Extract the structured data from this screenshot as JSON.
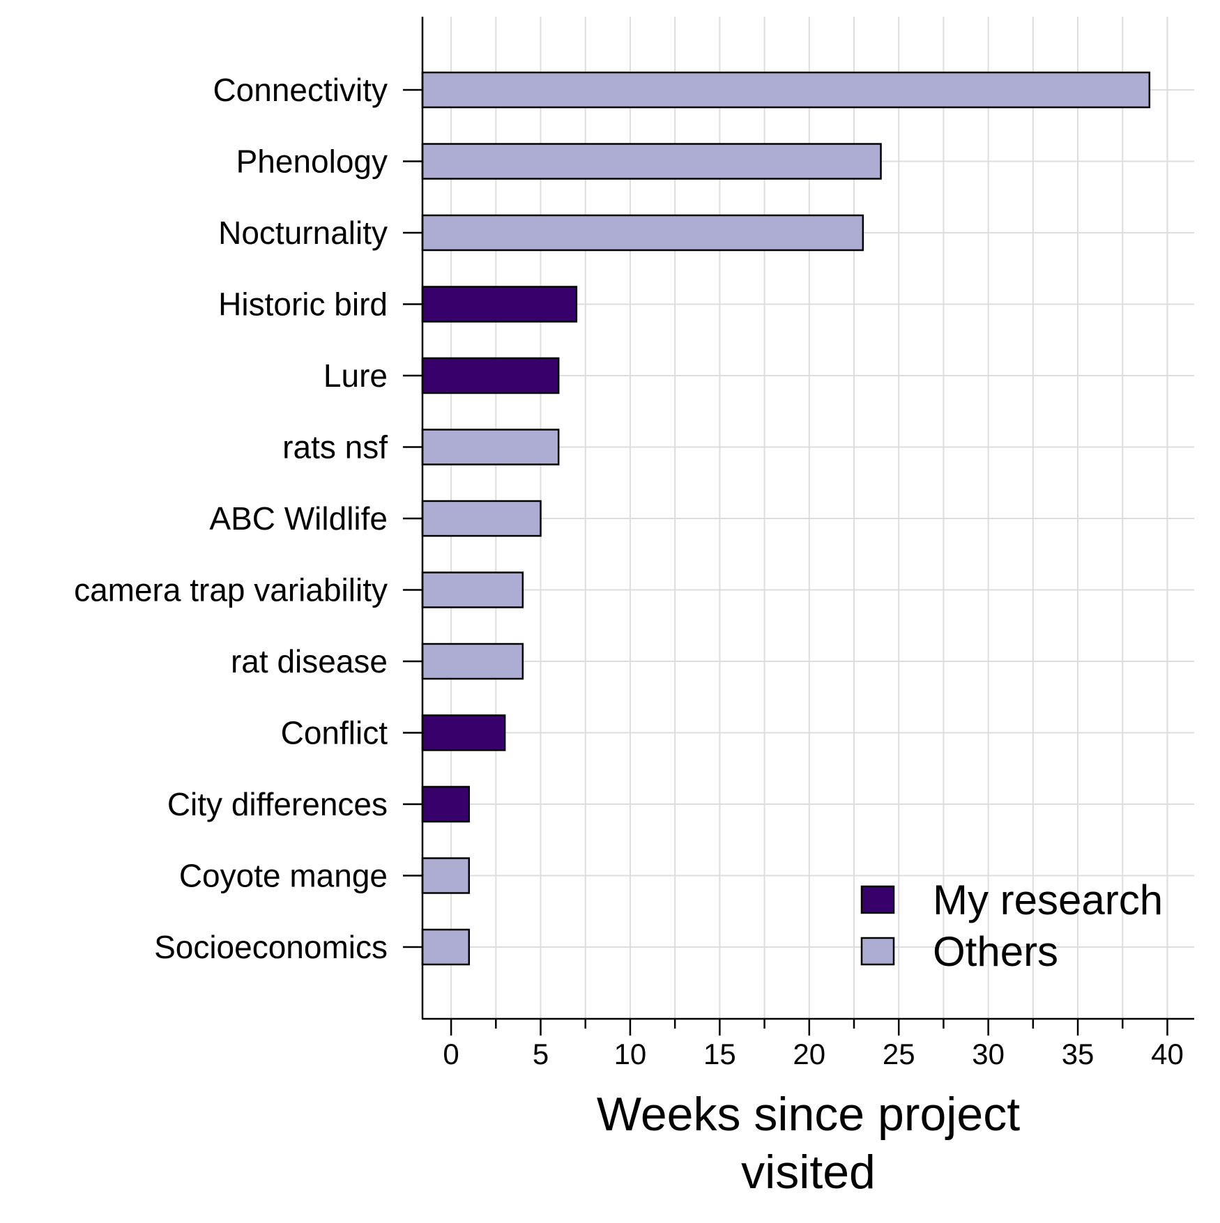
{
  "chart_data": {
    "type": "bar",
    "orientation": "horizontal",
    "categories": [
      "Connectivity",
      "Phenology",
      "Nocturnality",
      "Historic bird",
      "Lure",
      "rats nsf",
      "ABC Wildlife",
      "camera trap variability",
      "rat disease",
      "Conflict",
      "City differences",
      "Coyote mange",
      "Socioeconomics"
    ],
    "values": [
      39,
      24,
      23,
      7,
      6,
      6,
      5,
      4,
      4,
      3,
      1,
      1,
      1
    ],
    "groups": [
      "Others",
      "Others",
      "Others",
      "My research",
      "My research",
      "Others",
      "Others",
      "Others",
      "Others",
      "My research",
      "My research",
      "Others",
      "Others"
    ],
    "xlabel_lines": [
      "Weeks since project",
      "visited"
    ],
    "xlim": [
      -1.6,
      41.5
    ],
    "xticks": [
      0,
      5,
      10,
      15,
      20,
      25,
      30,
      35,
      40
    ],
    "xtick_labels": [
      "0",
      "5",
      "10",
      "15",
      "20",
      "25",
      "30",
      "35",
      "40"
    ],
    "minor_ticks": [
      2.5,
      7.5,
      12.5,
      17.5,
      22.5,
      27.5,
      32.5,
      37.5
    ],
    "grid": true,
    "legend": {
      "position": "bottom-right",
      "entries": [
        {
          "label": "My research",
          "color": "#38006b"
        },
        {
          "label": "Others",
          "color": "#adadd4"
        }
      ]
    },
    "colors": {
      "My research": "#38006b",
      "Others": "#adadd4",
      "bar_edge": "#000000",
      "grid": "#dddddd"
    }
  }
}
